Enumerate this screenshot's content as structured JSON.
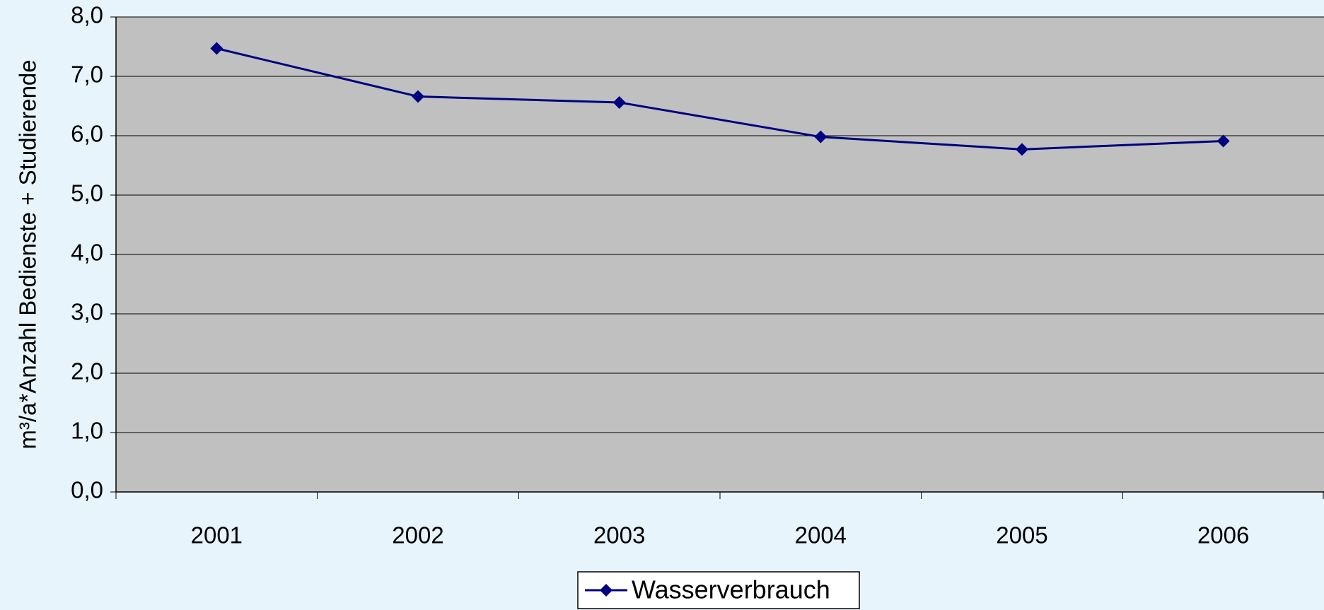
{
  "chart_data": {
    "type": "line",
    "y_axis_label": "m³/a*Anzahl Bedienste + Studierende",
    "categories": [
      "2001",
      "2002",
      "2003",
      "2004",
      "2005",
      "2006"
    ],
    "series": [
      {
        "name": "Wasserverbrauch",
        "color": "#000080",
        "values": [
          7.47,
          6.66,
          6.56,
          5.98,
          5.77,
          5.91
        ]
      }
    ],
    "ylim": [
      0,
      8
    ],
    "yticks": [
      {
        "value": 0,
        "label": "0,0"
      },
      {
        "value": 1,
        "label": "1,0"
      },
      {
        "value": 2,
        "label": "2,0"
      },
      {
        "value": 3,
        "label": "3,0"
      },
      {
        "value": 4,
        "label": "4,0"
      },
      {
        "value": 5,
        "label": "5,0"
      },
      {
        "value": 6,
        "label": "6,0"
      },
      {
        "value": 7,
        "label": "7,0"
      },
      {
        "value": 8,
        "label": "8,0"
      }
    ],
    "grid": true,
    "legend": "bottom",
    "plot_background": "#c0c0c0"
  }
}
